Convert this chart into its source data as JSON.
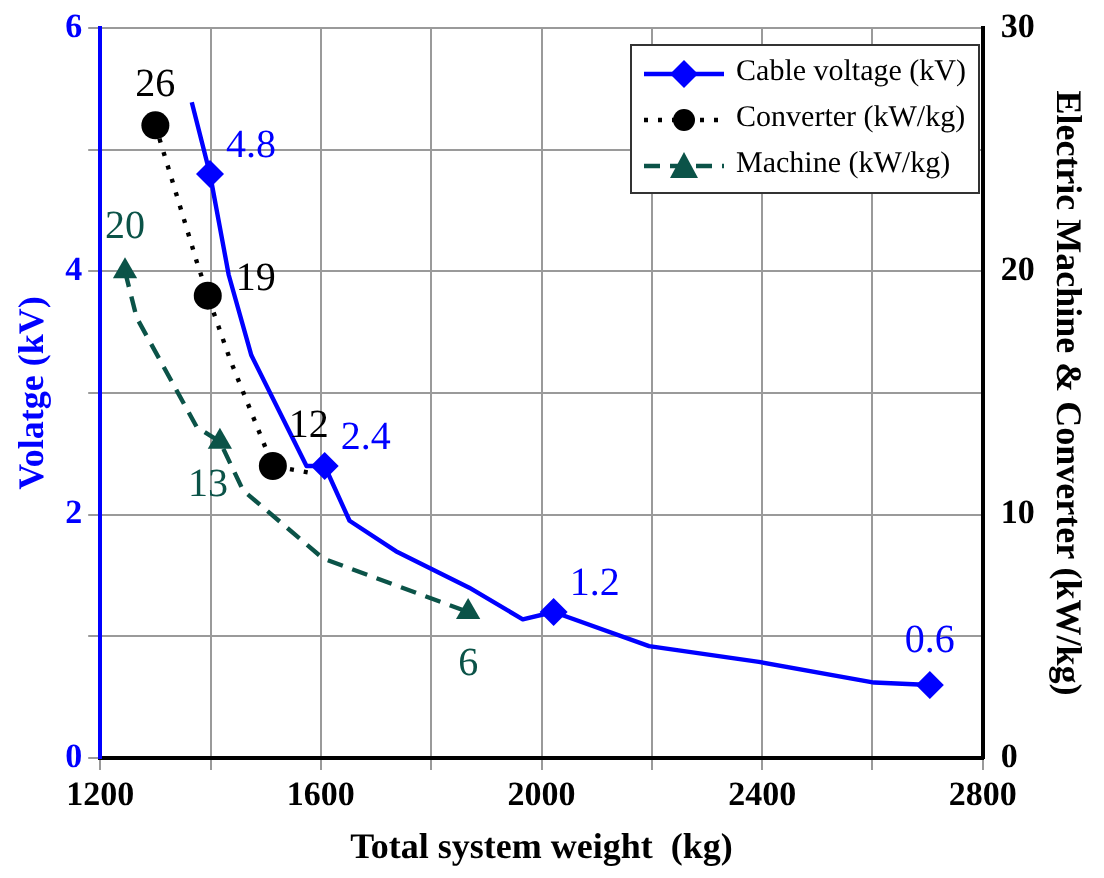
{
  "chart_data": {
    "type": "line",
    "xlabel": "Total system weight  (kg)",
    "ylabel": "Volatge (kV)",
    "y2label": "Electric Machine & Converter (kW/kg)",
    "xlim": [
      1200,
      2800
    ],
    "xticks": [
      1200,
      {
        "value": 1400,
        "label": null
      },
      1600,
      {
        "value": 1800,
        "label": null
      },
      2000,
      {
        "value": 2200,
        "label": null
      },
      2400,
      {
        "value": 2600,
        "label": null
      },
      2800
    ],
    "ylim": [
      0,
      6
    ],
    "yticks": [
      0,
      {
        "value": 1,
        "label": null
      },
      2,
      {
        "value": 3,
        "label": null
      },
      4,
      {
        "value": 5,
        "label": null
      },
      6
    ],
    "y2lim": [
      0,
      30
    ],
    "y2ticks": [
      0,
      {
        "value": 5,
        "label": null
      },
      10,
      {
        "value": 15,
        "label": null
      },
      20,
      {
        "value": 25,
        "label": null
      },
      30
    ],
    "grid": true,
    "legend": "top right",
    "series": [
      {
        "name": "Cable voltage (kV)",
        "color": "#0000ff",
        "marker": "none",
        "line_style": "solid",
        "x": [
          1366,
          1399,
          1433,
          1474,
          1574,
          1607,
          1652,
          1736,
          1869,
          1966,
          2022,
          2195,
          2394,
          2603,
          2704
        ],
        "values": [
          5.39,
          4.8,
          3.97,
          3.31,
          2.4,
          2.4,
          1.95,
          1.7,
          1.4,
          1.14,
          1.2,
          0.92,
          0.79,
          0.62,
          0.6
        ],
        "value_labels": [
          null,
          "4.8",
          null,
          null,
          null,
          "2.4",
          null,
          null,
          null,
          null,
          "1.2",
          null,
          null,
          null,
          "0.6"
        ]
      },
      {
        "name": "Converter  (kW/kg)",
        "color": "#000000",
        "marker": "none",
        "line_style": "dotted",
        "axis": "y2",
        "x": [
          1300,
          1339,
          1375,
          1395,
          1435,
          1513,
          1586
        ],
        "values": [
          26,
          23.1,
          20.4,
          19,
          16.4,
          12,
          11.7
        ],
        "value_labels": [
          "26",
          null,
          null,
          "19",
          null,
          "12",
          null
        ]
      },
      {
        "name": "Machine  (kW/kg)",
        "color": "#0b5348",
        "marker": "none",
        "line_style": "dashed",
        "axis": "y2",
        "x": [
          1245,
          1266,
          1375,
          1417,
          1459,
          1604,
          1867
        ],
        "values": [
          20,
          18.1,
          13.6,
          13,
          11.0,
          8.2,
          6
        ],
        "value_labels": [
          "20",
          null,
          null,
          "13",
          null,
          null,
          "6"
        ]
      },
      {
        "type": "scatter",
        "color": "#0000ff",
        "marker": "diamond",
        "x": [
          1399,
          1607,
          2022,
          2704
        ],
        "values": [
          4.8,
          2.4,
          1.2,
          0.6
        ]
      },
      {
        "type": "scatter",
        "color": "#000000",
        "marker": "circle",
        "axis": "y2",
        "x": [
          1300,
          1395,
          1513
        ],
        "values": [
          26,
          19,
          12
        ]
      },
      {
        "type": "scatter",
        "color": "#0b5348",
        "marker": "triangle",
        "axis": "y2",
        "x": [
          1245,
          1417,
          1867
        ],
        "values": [
          20,
          13,
          6
        ]
      }
    ]
  }
}
